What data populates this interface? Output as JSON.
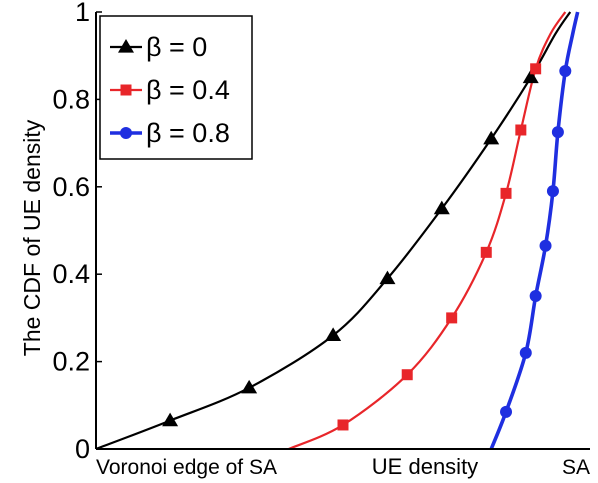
{
  "chart_data": {
    "type": "line",
    "title": "",
    "xlabel": "UE density",
    "ylabel": "The CDF of UE density",
    "x_ticklabels": {
      "left": "Voronoi edge of SA",
      "right": "SA"
    },
    "ylim": [
      0,
      1
    ],
    "xlim": [
      0,
      1
    ],
    "yticks": [
      "0",
      "0.2",
      "0.4",
      "0.6",
      "0.8",
      "1"
    ],
    "grid": false,
    "legend_position": "top-left",
    "series": [
      {
        "name": "β = 0",
        "color": "#000000",
        "marker": "triangle",
        "x": [
          0.0,
          0.15,
          0.31,
          0.48,
          0.59,
          0.7,
          0.8,
          0.88,
          0.93,
          0.96
        ],
        "y": [
          0.0,
          0.065,
          0.14,
          0.26,
          0.39,
          0.55,
          0.71,
          0.85,
          0.95,
          1.0
        ],
        "marker_indices": [
          1,
          2,
          3,
          4,
          5,
          6,
          7
        ]
      },
      {
        "name": "β = 0.4",
        "color": "#e8262a",
        "marker": "square",
        "x": [
          0.39,
          0.5,
          0.63,
          0.72,
          0.79,
          0.83,
          0.86,
          0.89,
          0.92,
          0.95
        ],
        "y": [
          0.0,
          0.055,
          0.17,
          0.3,
          0.45,
          0.585,
          0.73,
          0.87,
          0.95,
          1.0
        ],
        "marker_indices": [
          1,
          2,
          3,
          4,
          5,
          6,
          7
        ]
      },
      {
        "name": "β = 0.8",
        "color": "#1f2fe0",
        "marker": "circle",
        "x": [
          0.8,
          0.83,
          0.87,
          0.89,
          0.91,
          0.925,
          0.935,
          0.95,
          0.965,
          0.975
        ],
        "y": [
          0.0,
          0.085,
          0.22,
          0.35,
          0.465,
          0.59,
          0.725,
          0.865,
          0.95,
          1.0
        ],
        "marker_indices": [
          1,
          2,
          3,
          4,
          5,
          6,
          7
        ]
      }
    ]
  }
}
